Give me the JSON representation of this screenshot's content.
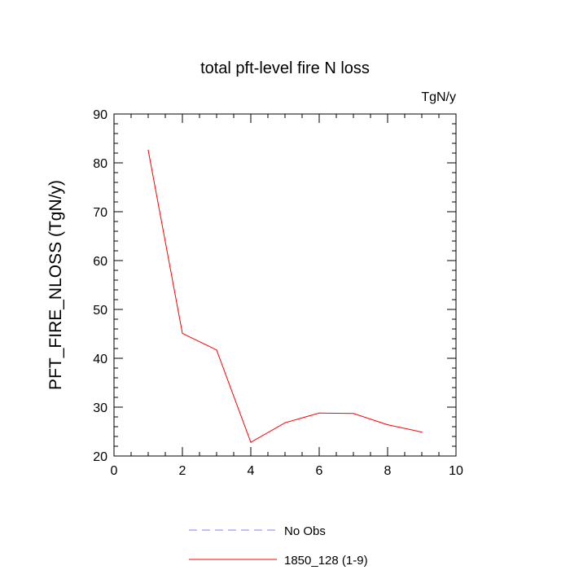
{
  "chart_data": {
    "type": "line",
    "title": "total pft-level fire N loss",
    "units_label": "TgN/y",
    "xlabel": "",
    "ylabel": "PFT_FIRE_NLOSS  (TgN/y)",
    "xlim": [
      0,
      10
    ],
    "ylim": [
      20,
      90
    ],
    "xticks": [
      0,
      2,
      4,
      6,
      8,
      10
    ],
    "yticks": [
      20,
      30,
      40,
      50,
      60,
      70,
      80,
      90
    ],
    "series": [
      {
        "name": "1850_128 (1-9)",
        "color": "#ff0000",
        "dash": "solid",
        "x": [
          1,
          2,
          3,
          4,
          5,
          6,
          7,
          8,
          9
        ],
        "y": [
          82.6,
          45.1,
          41.7,
          22.8,
          26.8,
          28.8,
          28.7,
          26.4,
          24.9
        ]
      }
    ],
    "legend": [
      {
        "label": "No Obs",
        "color": "#8080ff",
        "dash": "dashed"
      },
      {
        "label": "1850_128 (1-9)",
        "color": "#ff0000",
        "dash": "solid"
      }
    ]
  }
}
